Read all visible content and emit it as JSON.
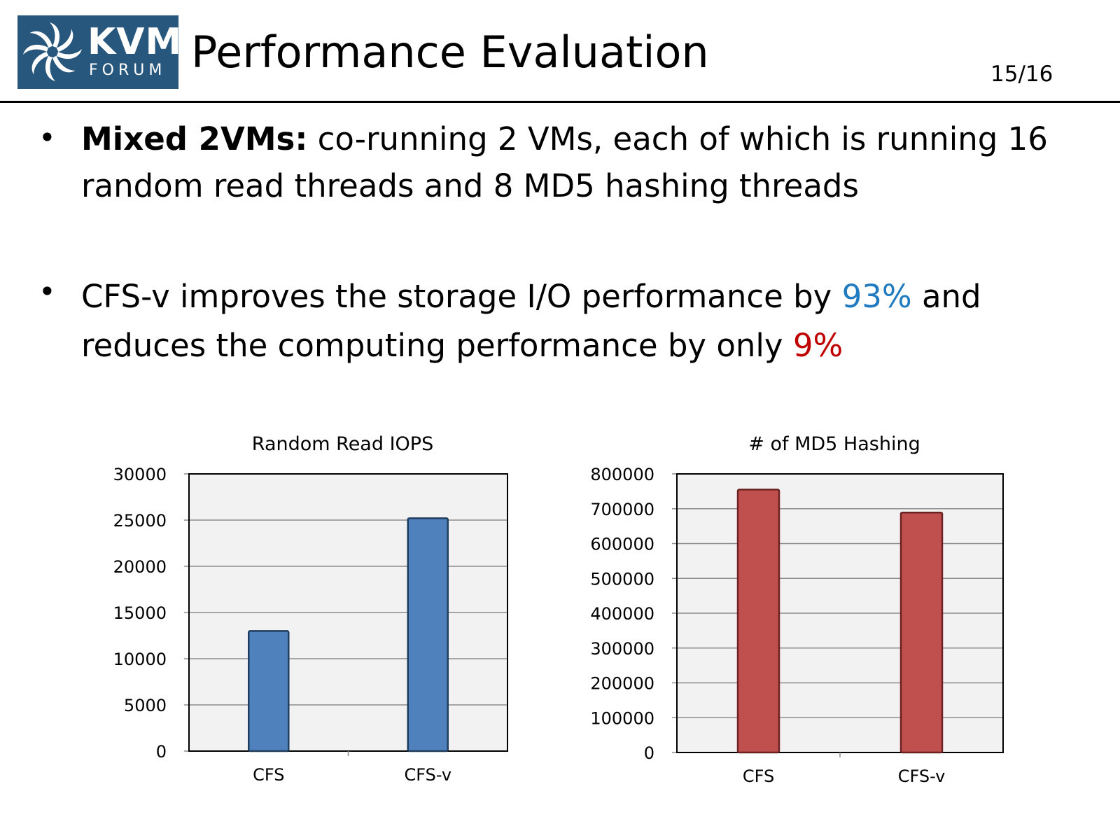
{
  "header": {
    "logo": {
      "text_top": "KVM",
      "text_bottom": "FORUM",
      "color": "#27577d"
    },
    "title": "Performance Evaluation",
    "page_number": "15/16"
  },
  "bullets": [
    {
      "bold": "Mixed 2VMs:",
      "text": " co-running 2 VMs, each of which is running 16 random read threads and 8 MD5 hashing threads"
    },
    {
      "pre": "CFS-v improves the storage I/O performance by ",
      "hl1": "93%",
      "mid": " and reduces the computing performance by only ",
      "hl2": "9%",
      "hl1_color": "#1f7ac0",
      "hl2_color": "#c00000"
    }
  ],
  "chart_data": [
    {
      "type": "bar",
      "title": "Random Read IOPS",
      "categories": [
        "CFS",
        "CFS-v"
      ],
      "values": [
        13000,
        25200
      ],
      "ylim": [
        0,
        30000
      ],
      "yticks": [
        "0",
        "5000",
        "10000",
        "15000",
        "20000",
        "25000",
        "30000"
      ],
      "grid": true,
      "color": "#4f81bd",
      "xlabel": "",
      "ylabel": ""
    },
    {
      "type": "bar",
      "title": "# of MD5 Hashing",
      "categories": [
        "CFS",
        "CFS-v"
      ],
      "values": [
        755000,
        689000
      ],
      "ylim": [
        0,
        800000
      ],
      "yticks": [
        "0",
        "100000",
        "200000",
        "300000",
        "400000",
        "500000",
        "600000",
        "700000",
        "800000"
      ],
      "grid": true,
      "color": "#c0504d",
      "xlabel": "",
      "ylabel": ""
    }
  ]
}
